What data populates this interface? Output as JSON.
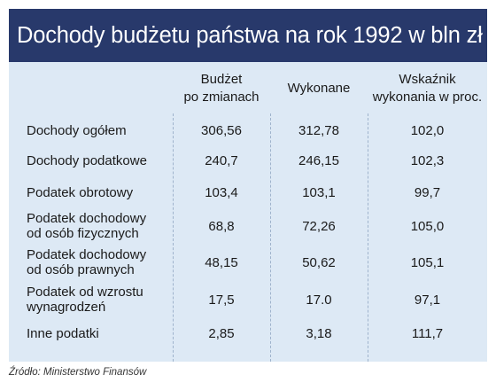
{
  "title": "Dochody budżetu państwa na rok 1992 w bln zł",
  "headers": {
    "col1_line1": "Budżet",
    "col1_line2": "po zmianach",
    "col2": "Wykonane",
    "col3_line1": "Wskaźnik",
    "col3_line2": "wykonania w proc."
  },
  "rows": [
    {
      "label_line1": "Dochody ogółem",
      "label_line2": "",
      "budzet": "306,56",
      "wykonane": "312,78",
      "wskaznik": "102,0"
    },
    {
      "label_line1": "Dochody podatkowe",
      "label_line2": "",
      "budzet": "240,7",
      "wykonane": "246,15",
      "wskaznik": "102,3"
    },
    {
      "label_line1": "Podatek obrotowy",
      "label_line2": "",
      "budzet": "103,4",
      "wykonane": "103,1",
      "wskaznik": "99,7"
    },
    {
      "label_line1": "Podatek dochodowy",
      "label_line2": "od osób fizycznych",
      "budzet": "68,8",
      "wykonane": "72,26",
      "wskaznik": "105,0"
    },
    {
      "label_line1": "Podatek dochodowy",
      "label_line2": "od osób prawnych",
      "budzet": "48,15",
      "wykonane": "50,62",
      "wskaznik": "105,1"
    },
    {
      "label_line1": "Podatek od wzrostu",
      "label_line2": "wynagrodzeń",
      "budzet": "17,5",
      "wykonane": "17.0",
      "wskaznik": "97,1"
    },
    {
      "label_line1": "Inne podatki",
      "label_line2": "",
      "budzet": "2,85",
      "wykonane": "3,18",
      "wskaznik": "111,7"
    }
  ],
  "source": "Źródło: Ministerstwo Finansów"
}
